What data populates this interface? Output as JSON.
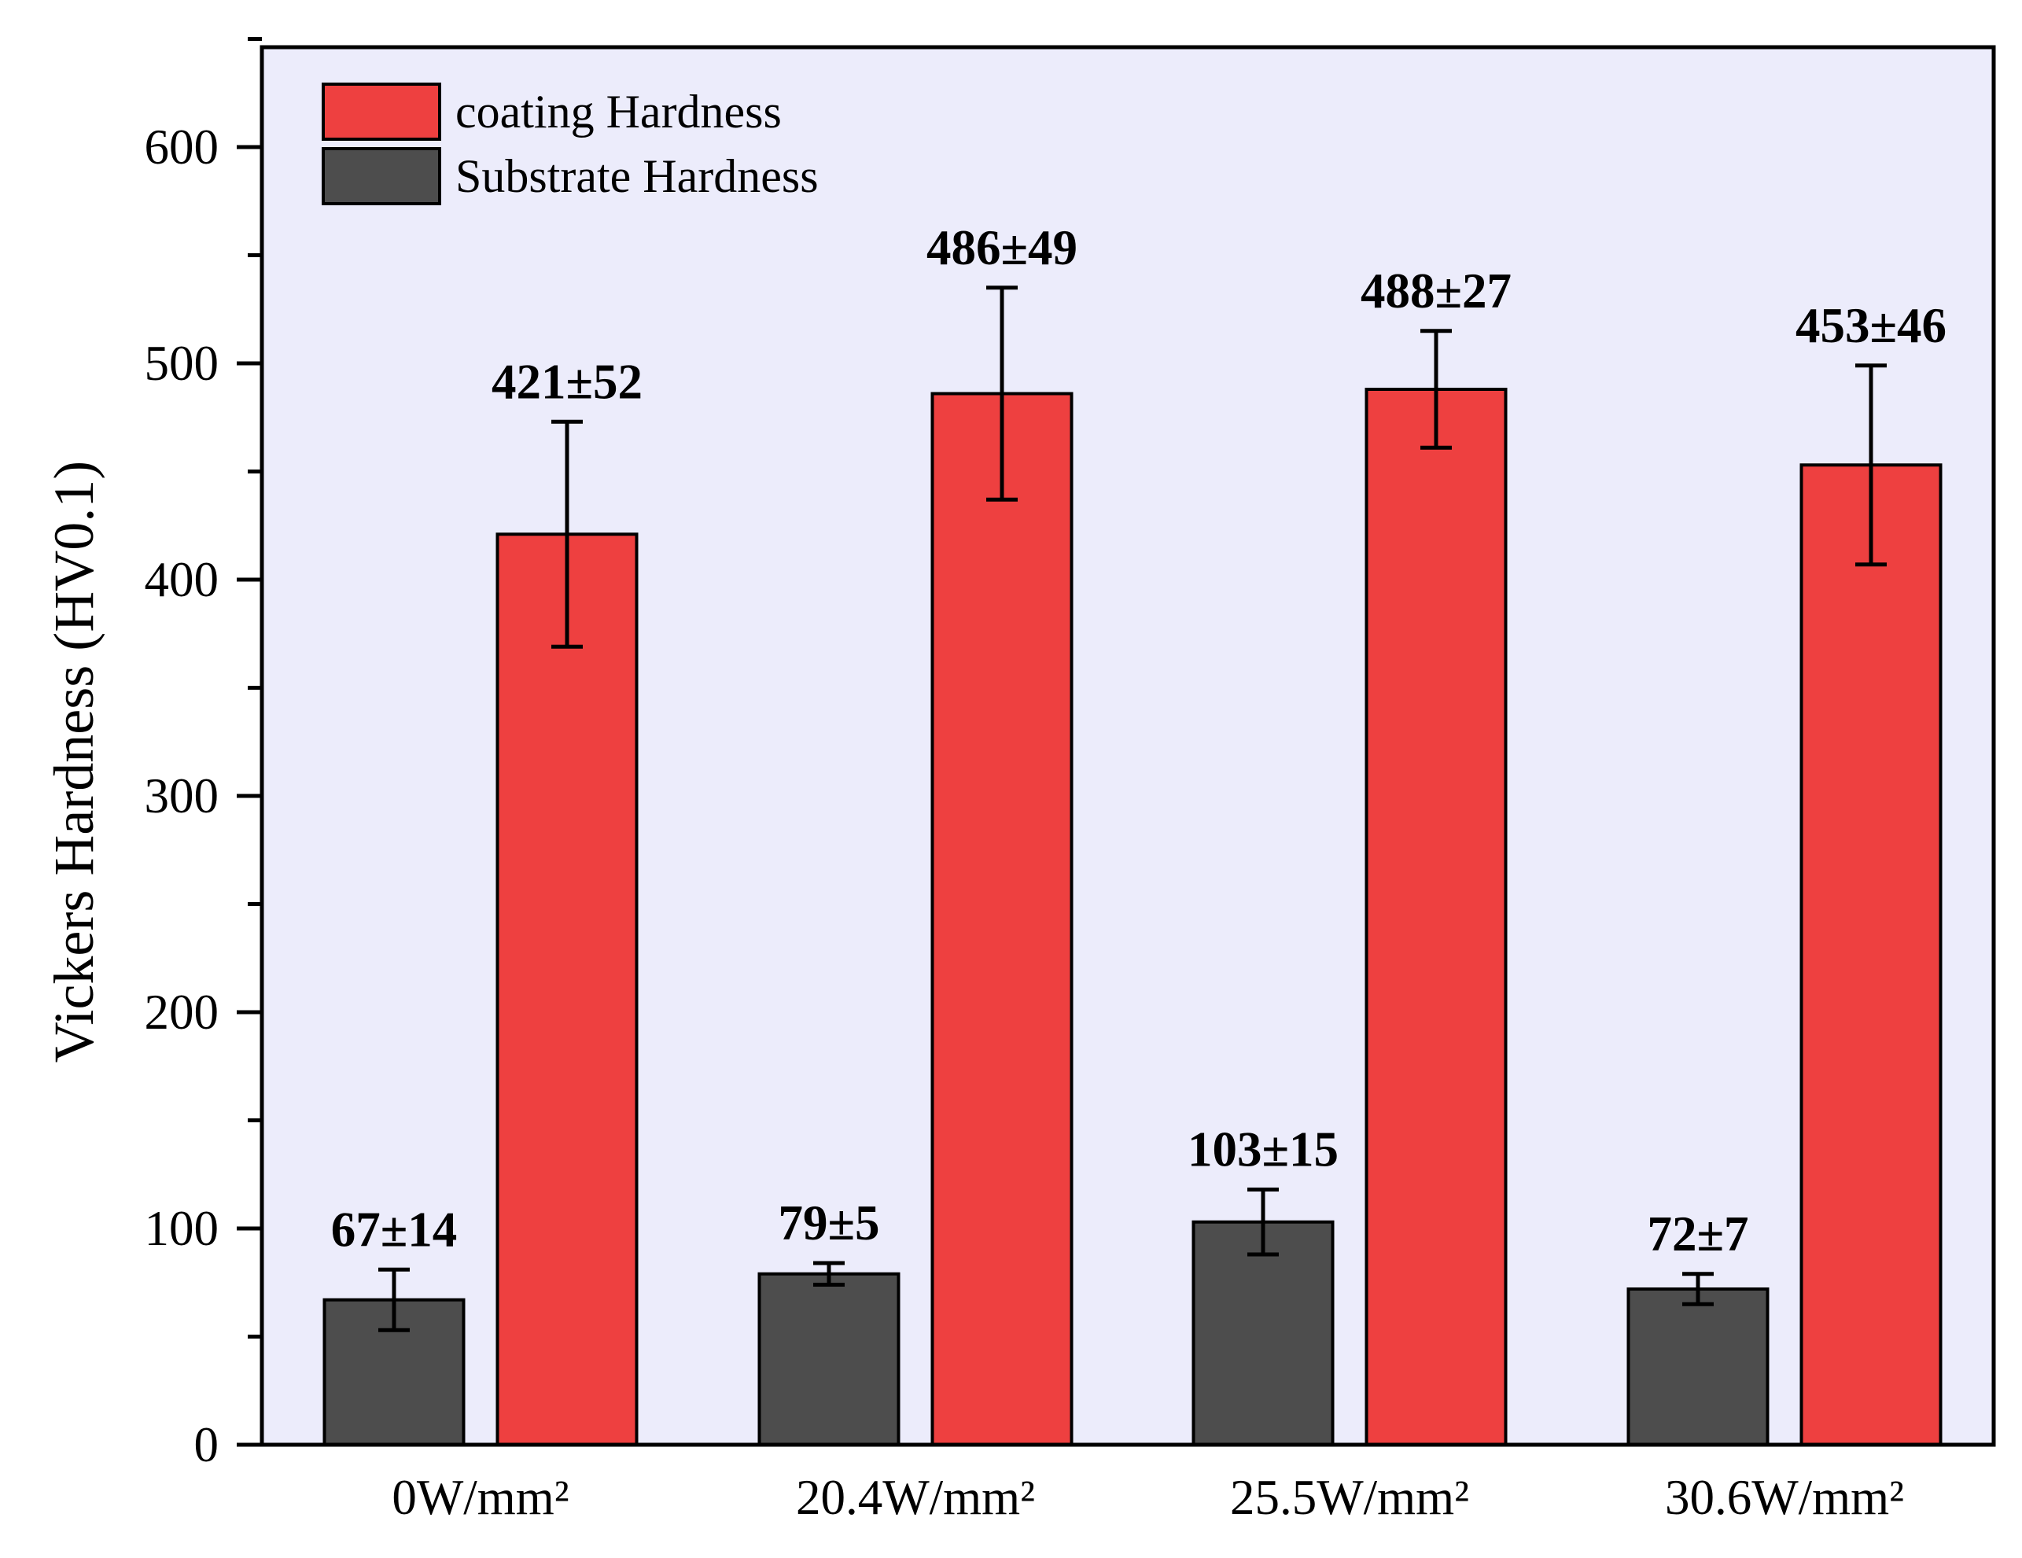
{
  "chart_data": {
    "type": "bar",
    "title": "",
    "xlabel": "",
    "ylabel": "Vickers Hardness (HV0.1)",
    "ylim": [
      0,
      650
    ],
    "yticks": [
      0,
      100,
      200,
      300,
      400,
      500,
      600
    ],
    "categories": [
      "0W/mm²",
      "20.4W/mm²",
      "25.5W/mm²",
      "30.6W/mm²"
    ],
    "legend_position": "top-left",
    "series": [
      {
        "name": "Substrate Hardness",
        "color": "#4d4d4d",
        "values": [
          67,
          79,
          103,
          72
        ],
        "errors": [
          14,
          5,
          15,
          7
        ],
        "labels": [
          "67±14",
          "79±5",
          "103±15",
          "72±7"
        ]
      },
      {
        "name": "coating Hardness",
        "color": "#ee4040",
        "values": [
          421,
          486,
          488,
          453
        ],
        "errors": [
          52,
          49,
          27,
          46
        ],
        "labels": [
          "421±52",
          "486±49",
          "488±27",
          "453±46"
        ]
      }
    ],
    "legend_order": [
      "coating Hardness",
      "Substrate Hardness"
    ],
    "plot_background": "#ececfb"
  }
}
